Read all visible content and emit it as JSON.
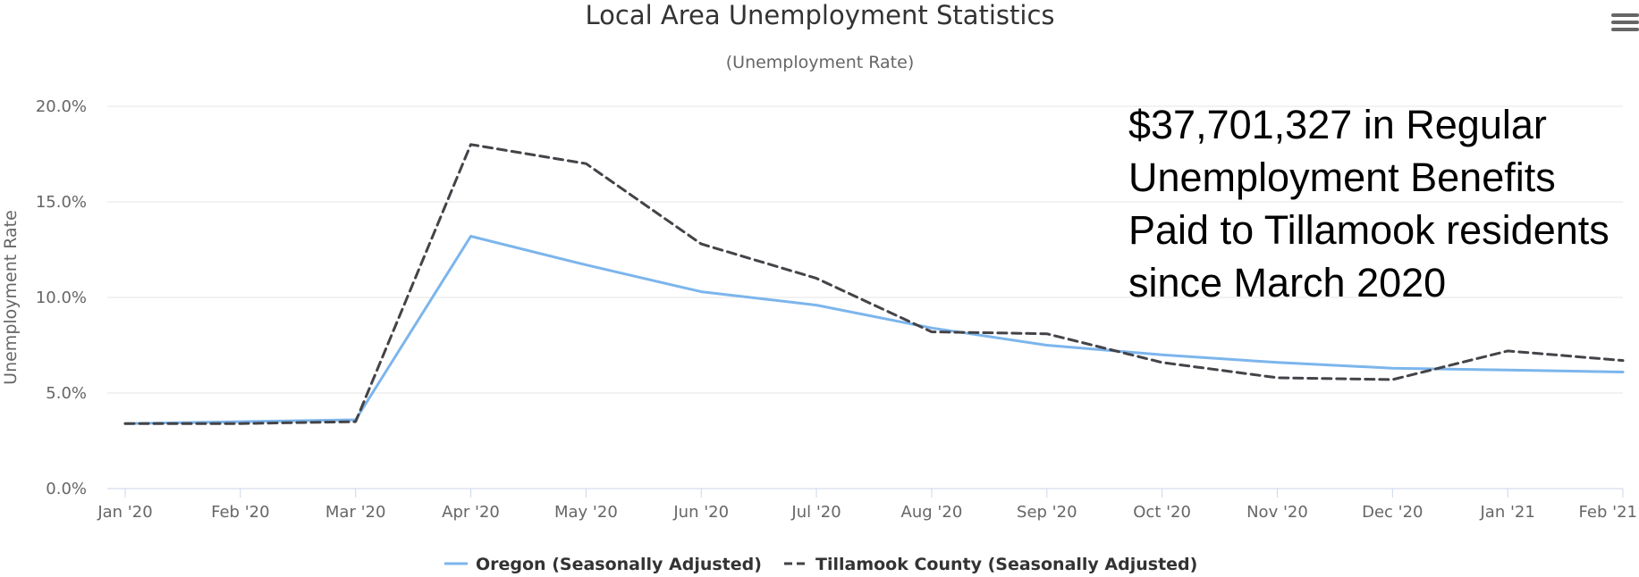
{
  "chart_data": {
    "type": "line",
    "title": "Local Area Unemployment Statistics",
    "subtitle": "(Unemployment Rate)",
    "ylabel": "Unemployment Rate",
    "xlabel": "",
    "categories": [
      "Jan '20",
      "Feb '20",
      "Mar '20",
      "Apr '20",
      "May '20",
      "Jun '20",
      "Jul '20",
      "Aug '20",
      "Sep '20",
      "Oct '20",
      "Nov '20",
      "Dec '20",
      "Jan '21",
      "Feb '21"
    ],
    "ylim": [
      0,
      20
    ],
    "yticks": [
      "0.0%",
      "5.0%",
      "10.0%",
      "15.0%",
      "20.0%"
    ],
    "grid": true,
    "legend_position": "bottom-center",
    "series": [
      {
        "name": "Oregon (Seasonally Adjusted)",
        "color": "#7cb5ec",
        "dash": "solid",
        "values": [
          3.4,
          3.5,
          3.6,
          13.2,
          11.7,
          10.3,
          9.6,
          8.4,
          7.5,
          7.0,
          6.6,
          6.3,
          6.2,
          6.1
        ]
      },
      {
        "name": "Tillamook County (Seasonally Adjusted)",
        "color": "#434348",
        "dash": "dashed",
        "values": [
          3.4,
          3.4,
          3.5,
          18.0,
          17.0,
          12.8,
          11.0,
          8.2,
          8.1,
          6.6,
          5.8,
          5.7,
          7.2,
          6.7
        ]
      }
    ]
  },
  "annotation": "$37,701,327 in Regular Unemployment Benefits Paid to Tillamook residents since March 2020",
  "menu": {
    "icon": "hamburger-menu-icon"
  }
}
